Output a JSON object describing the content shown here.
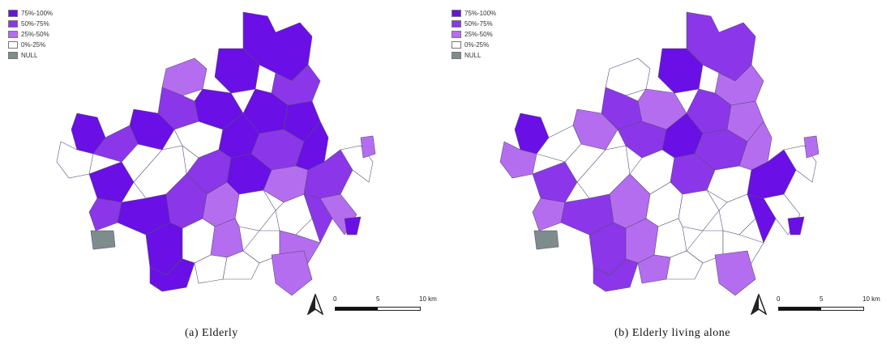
{
  "legend": [
    {
      "label": "75%-100%",
      "color": "#6a0fe6"
    },
    {
      "label": "50%-75%",
      "color": "#8c36ea"
    },
    {
      "label": "25%-50%",
      "color": "#b56df0"
    },
    {
      "label": "0%-25%",
      "color": "#ffffff"
    },
    {
      "label": "NULL",
      "color": "#7f8c8d"
    }
  ],
  "scale": {
    "ticks": [
      "0",
      "5",
      "10 km"
    ]
  },
  "panels": [
    {
      "caption": "(a)  Elderly",
      "dominant_class": "75%-100%"
    },
    {
      "caption": "(b)  Elderly  living  alone",
      "dominant_class": "50%-75%"
    }
  ]
}
